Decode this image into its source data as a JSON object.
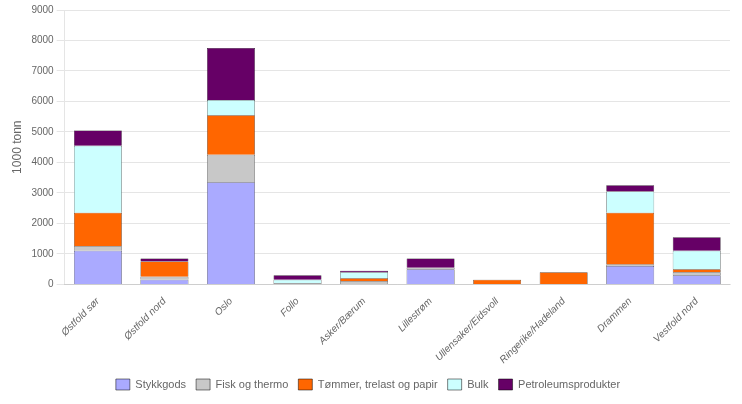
{
  "chart_data": {
    "type": "bar",
    "categories": [
      "Østfold sør",
      "Østfold nord",
      "Oslo",
      "Follo",
      "Asker/Bærum",
      "Lillestrøm",
      "Ullensaker/Eidsvoll",
      "Ringerike/Hadeland",
      "Drammen",
      "Vestfold nord"
    ],
    "series": [
      {
        "name": "Stykkgods",
        "color": "#AAAAFF",
        "values": [
          1100,
          150,
          3350,
          0,
          0,
          500,
          0,
          0,
          600,
          300
        ]
      },
      {
        "name": "Fisk og thermo",
        "color": "#C8C8C8",
        "values": [
          150,
          100,
          900,
          50,
          100,
          50,
          0,
          0,
          50,
          100
        ]
      },
      {
        "name": "Tømmer, trelast og papir",
        "color": "#FF6600",
        "values": [
          1100,
          500,
          1300,
          0,
          100,
          0,
          150,
          400,
          1700,
          100
        ]
      },
      {
        "name": "Bulk",
        "color": "#CCFFFF",
        "values": [
          2200,
          0,
          500,
          100,
          200,
          0,
          0,
          0,
          700,
          600
        ]
      },
      {
        "name": "Petroleumsprodukter",
        "color": "#660066",
        "values": [
          500,
          100,
          1700,
          150,
          50,
          300,
          0,
          0,
          200,
          450
        ]
      }
    ],
    "ylabel": "1000 tonn",
    "ylim": [
      0,
      9000
    ],
    "yticks": [
      0,
      1000,
      2000,
      3000,
      4000,
      5000,
      6000,
      7000,
      8000,
      9000
    ],
    "grid": true,
    "stacked": true,
    "legend": "bottom"
  }
}
